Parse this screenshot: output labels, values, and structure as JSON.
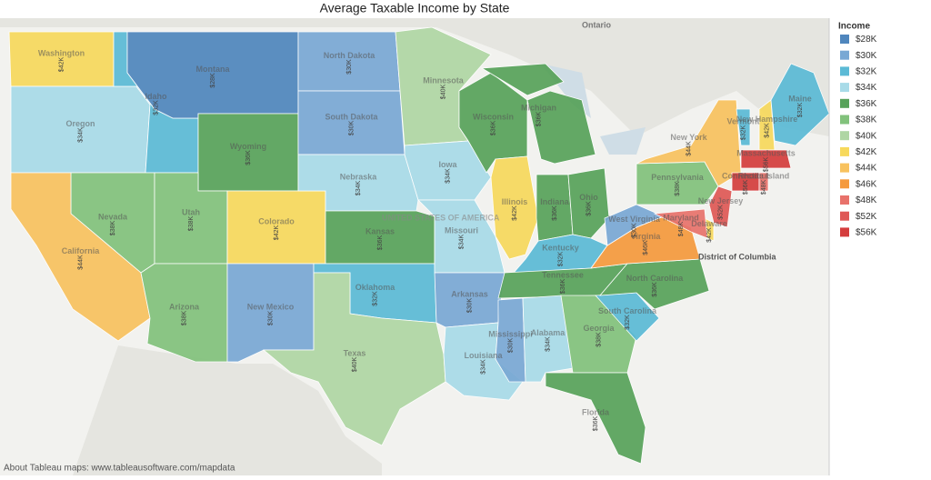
{
  "chart_data": {
    "type": "choropleth",
    "title": "Average Taxable Income by State",
    "legend": {
      "title": "Income",
      "items": [
        {
          "value": 28,
          "label": "$28K",
          "color": "#4f86bd"
        },
        {
          "value": 30,
          "label": "$30K",
          "color": "#79a8d4"
        },
        {
          "value": 32,
          "label": "$32K",
          "color": "#5bbad6"
        },
        {
          "value": 34,
          "label": "$34K",
          "color": "#a8dbe8"
        },
        {
          "value": 36,
          "label": "$36K",
          "color": "#57a25a"
        },
        {
          "value": 38,
          "label": "$38K",
          "color": "#82c27c"
        },
        {
          "value": 40,
          "label": "$40K",
          "color": "#afd6a4"
        },
        {
          "value": 42,
          "label": "$42K",
          "color": "#f7d95c"
        },
        {
          "value": 44,
          "label": "$44K",
          "color": "#f8c25e"
        },
        {
          "value": 46,
          "label": "$46K",
          "color": "#f59a3d"
        },
        {
          "value": 48,
          "label": "$48K",
          "color": "#e8726b"
        },
        {
          "value": 52,
          "label": "$52K",
          "color": "#df5856"
        },
        {
          "value": 56,
          "label": "$56K",
          "color": "#d43d3d"
        }
      ]
    },
    "states": [
      {
        "name": "Washington",
        "value": 42,
        "label": "$42K"
      },
      {
        "name": "Oregon",
        "value": 34,
        "label": "$34K"
      },
      {
        "name": "Idaho",
        "value": 32,
        "label": "$32K"
      },
      {
        "name": "Montana",
        "value": 28,
        "label": "$28K"
      },
      {
        "name": "Wyoming",
        "value": 36,
        "label": "$36K"
      },
      {
        "name": "Nevada",
        "value": 38,
        "label": "$38K"
      },
      {
        "name": "California",
        "value": 44,
        "label": "$44K"
      },
      {
        "name": "Utah",
        "value": 38,
        "label": "$38K"
      },
      {
        "name": "Colorado",
        "value": 42,
        "label": "$42K"
      },
      {
        "name": "Arizona",
        "value": 38,
        "label": "$38K"
      },
      {
        "name": "New Mexico",
        "value": 30,
        "label": "$30K"
      },
      {
        "name": "North Dakota",
        "value": 30,
        "label": "$30K"
      },
      {
        "name": "South Dakota",
        "value": 30,
        "label": "$30K"
      },
      {
        "name": "Nebraska",
        "value": 34,
        "label": "$34K"
      },
      {
        "name": "Kansas",
        "value": 36,
        "label": "$36K"
      },
      {
        "name": "Oklahoma",
        "value": 32,
        "label": "$32K"
      },
      {
        "name": "Texas",
        "value": 40,
        "label": "$40K"
      },
      {
        "name": "Minnesota",
        "value": 40,
        "label": "$40K"
      },
      {
        "name": "Iowa",
        "value": 34,
        "label": "$34K"
      },
      {
        "name": "Missouri",
        "value": 34,
        "label": "$34K"
      },
      {
        "name": "Arkansas",
        "value": 30,
        "label": "$30K"
      },
      {
        "name": "Louisiana",
        "value": 34,
        "label": "$34K"
      },
      {
        "name": "Wisconsin",
        "value": 36,
        "label": "$36K"
      },
      {
        "name": "Illinois",
        "value": 42,
        "label": "$42K"
      },
      {
        "name": "Michigan",
        "value": 36,
        "label": "$36K"
      },
      {
        "name": "Indiana",
        "value": 36,
        "label": "$36K"
      },
      {
        "name": "Ohio",
        "value": 36,
        "label": "$36K"
      },
      {
        "name": "Kentucky",
        "value": 32,
        "label": "$32K"
      },
      {
        "name": "Tennessee",
        "value": 36,
        "label": "$36K"
      },
      {
        "name": "Mississippi",
        "value": 30,
        "label": "$30K"
      },
      {
        "name": "Alabama",
        "value": 34,
        "label": "$34K"
      },
      {
        "name": "Georgia",
        "value": 38,
        "label": "$38K"
      },
      {
        "name": "Florida",
        "value": 36,
        "label": "$36K"
      },
      {
        "name": "South Carolina",
        "value": 32,
        "label": "$32K"
      },
      {
        "name": "North Carolina",
        "value": 36,
        "label": "$36K"
      },
      {
        "name": "Virginia",
        "value": 46,
        "label": "$46K"
      },
      {
        "name": "West Virginia",
        "value": 30,
        "label": "$30K"
      },
      {
        "name": "Pennsylvania",
        "value": 38,
        "label": "$38K"
      },
      {
        "name": "New York",
        "value": 44,
        "label": "$44K"
      },
      {
        "name": "Vermont",
        "value": 32,
        "label": "$32K"
      },
      {
        "name": "New Hampshire",
        "value": 42,
        "label": "$42K"
      },
      {
        "name": "Maine",
        "value": 32,
        "label": "$32K"
      },
      {
        "name": "Massachusetts",
        "value": 56,
        "label": "$56K"
      },
      {
        "name": "Connecticut",
        "value": 56,
        "label": "$56K"
      },
      {
        "name": "Rhode Island",
        "value": 48,
        "label": "$48K"
      },
      {
        "name": "New Jersey",
        "value": 52,
        "label": "$52K"
      },
      {
        "name": "Delaware",
        "value": 42,
        "label": "$42K"
      },
      {
        "name": "Maryland",
        "value": 48,
        "label": "$48K"
      }
    ],
    "places": [
      "Ontario",
      "UNITED STATES OF AMERICA",
      "District of Columbia"
    ],
    "footer": "About Tableau maps: www.tableausoftware.com/mapdata"
  }
}
